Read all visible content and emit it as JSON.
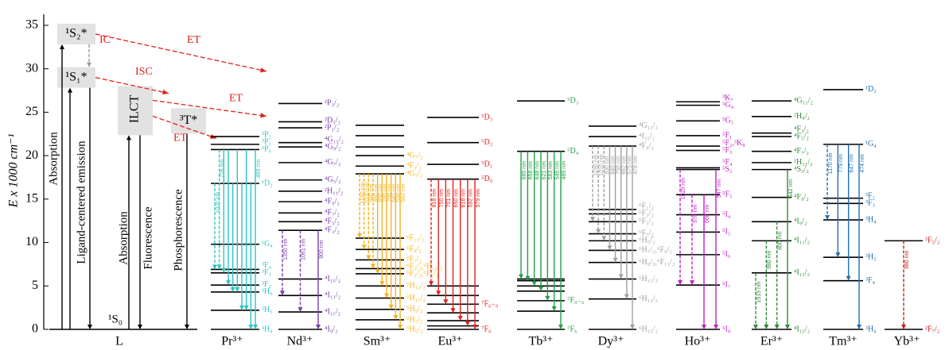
{
  "axis": {
    "label": "E x 1000 cm⁻¹",
    "lim": [
      0,
      36
    ],
    "ticks": [
      0,
      5,
      10,
      15,
      20,
      25,
      30,
      35
    ]
  },
  "ligand": {
    "name": "L",
    "s2": {
      "label": "¹S₂*",
      "E": 34
    },
    "s1": {
      "label": "¹S₁*",
      "E": 29
    },
    "s0": {
      "label": "¹S₀",
      "E": 0
    },
    "ilct": {
      "label": "ILCT",
      "E": 25
    },
    "triplet": {
      "label": "³T*",
      "E": 24
    },
    "absorption": "Absorption",
    "emission": "Ligand-centered emission",
    "ilct_absorption": "Absorption",
    "fluorescence": "Fluorescence",
    "phosphorescence": "Phosphorescence",
    "ic": "IC",
    "isc": "ISC",
    "et": [
      "ET",
      "ET",
      "ET"
    ]
  },
  "ions": [
    {
      "name": "Pr³⁺",
      "color": "#2fc4c0",
      "levels": [
        [
          0,
          "³H₄"
        ],
        [
          2.2,
          "³H₅"
        ],
        [
          4.3,
          "³H₆"
        ],
        [
          5.1,
          "³F₂"
        ],
        [
          6.5,
          "³F₃"
        ],
        [
          6.9,
          "³F₄"
        ],
        [
          9.8,
          "¹G₄"
        ],
        [
          16.8,
          "¹D₂"
        ],
        [
          20.7,
          "³P₀"
        ],
        [
          21.3,
          "³P₁"
        ],
        [
          22.2,
          "³P₂"
        ]
      ],
      "transitions": [
        [
          7,
          5,
          "1020 nm",
          true
        ],
        [
          8,
          5,
          "726 nm",
          true
        ],
        [
          8,
          4,
          null,
          false
        ],
        [
          8,
          3,
          null,
          false
        ],
        [
          7,
          2,
          null,
          false
        ],
        [
          8,
          2,
          null,
          false
        ],
        [
          7,
          1,
          null,
          false
        ],
        [
          8,
          1,
          null,
          false
        ],
        [
          7,
          0,
          null,
          false
        ],
        [
          8,
          0,
          "489 nm",
          false
        ]
      ]
    },
    {
      "name": "Nd³⁺",
      "color": "#7b3fa8",
      "levels": [
        [
          0,
          "⁴I₉/₂"
        ],
        [
          2.0,
          "⁴I₁₁/₂"
        ],
        [
          3.9,
          "⁴I₁₃/₂"
        ],
        [
          5.8,
          "⁴I₁₅/₂"
        ],
        [
          11.4,
          "⁴F₃/₂"
        ],
        [
          12.4,
          "⁴F₅/₂"
        ],
        [
          13.4,
          "⁴F₇/₂"
        ],
        [
          14.7,
          "⁴F₉/₂"
        ],
        [
          15.9,
          "²H₁₁/₂"
        ],
        [
          17.2,
          "⁴G₅/₂"
        ],
        [
          19.2,
          "⁴G₇/₂"
        ],
        [
          21.0,
          "⁴G₉/₂"
        ],
        [
          21.5,
          "⁴G₁₁/₂"
        ],
        [
          23.2,
          "²P₁/₂"
        ],
        [
          23.9,
          "²D₅/₂"
        ],
        [
          26.0,
          "²P₃/₂"
        ]
      ],
      "transitions": [
        [
          4,
          2,
          "1350 nm",
          true
        ],
        [
          4,
          1,
          "1061 nm",
          true
        ],
        [
          4,
          0,
          "900 nm",
          false
        ]
      ]
    },
    {
      "name": "Sm³⁺",
      "color": "#f0b422",
      "levels": [
        [
          0,
          "⁶H₅/₂"
        ],
        [
          1.1,
          "⁶H₇/₂"
        ],
        [
          2.3,
          "⁶H₉/₂"
        ],
        [
          3.6,
          "⁶H₁₁/₂"
        ],
        [
          5.0,
          "⁶H₁₃/₂"
        ],
        [
          6.4,
          "⁶F₃/₂,⁶F₁/₂"
        ],
        [
          7.0,
          "⁶F₅/₂,⁶H₁₅/₂"
        ],
        [
          8.0,
          "⁶F₇/₂"
        ],
        [
          9.2,
          "⁶F₉/₂"
        ],
        [
          10.5,
          "⁶F₁₁/₂"
        ],
        [
          17.9,
          "⁴G₅/₂"
        ],
        [
          18.8,
          "⁴F₃/₂"
        ],
        [
          20.0,
          "⁴G₇/₂"
        ],
        [
          21.0,
          null
        ],
        [
          22.3,
          null
        ],
        [
          23.5,
          null
        ]
      ],
      "transitions": [
        [
          10,
          9,
          "1190 nm",
          true
        ],
        [
          10,
          8,
          "1030 nm",
          true
        ],
        [
          10,
          7,
          "940 nm",
          true
        ],
        [
          10,
          6,
          "880 nm",
          true
        ],
        [
          10,
          5,
          "850 nm",
          false
        ],
        [
          10,
          4,
          "785 nm",
          false
        ],
        [
          10,
          3,
          "705 nm",
          false
        ],
        [
          10,
          2,
          "645 nm",
          false
        ],
        [
          10,
          1,
          "598 nm",
          false
        ],
        [
          10,
          0,
          "562 nm",
          false
        ]
      ]
    },
    {
      "name": "Eu³⁺",
      "color": "#e3201c",
      "levels": [
        [
          0,
          "⁷F₀"
        ],
        [
          0.4,
          null
        ],
        [
          1.0,
          null
        ],
        [
          1.9,
          null
        ],
        [
          2.9,
          "⁷F₆₋₀"
        ],
        [
          3.9,
          null
        ],
        [
          5.0,
          null
        ],
        [
          17.3,
          "⁵D₀"
        ],
        [
          19.0,
          "⁵D₁"
        ],
        [
          21.5,
          "⁵D₂"
        ],
        [
          24.4,
          "⁵D₃"
        ]
      ],
      "transitions": [
        [
          7,
          6,
          "818 nm",
          true
        ],
        [
          7,
          5,
          "750 nm",
          false
        ],
        [
          7,
          4,
          "701 nm",
          false
        ],
        [
          7,
          3,
          "650 nm",
          false
        ],
        [
          7,
          2,
          "618 nm",
          false
        ],
        [
          7,
          1,
          "592 nm",
          false
        ],
        [
          7,
          0,
          "579 nm",
          false
        ]
      ]
    },
    {
      "name": "Tb³⁺",
      "color": "#22a04a",
      "levels": [
        [
          0,
          "⁷F₆"
        ],
        [
          2.1,
          null
        ],
        [
          3.3,
          "⁷F₀₋₆"
        ],
        [
          4.4,
          null
        ],
        [
          5.0,
          null
        ],
        [
          5.6,
          null
        ],
        [
          5.8,
          null
        ],
        [
          20.5,
          "⁵D₄"
        ],
        [
          26.3,
          "⁵D₃"
        ]
      ],
      "transitions": [
        [
          7,
          6,
          "680 nm",
          false
        ],
        [
          7,
          5,
          "668 nm",
          false
        ],
        [
          7,
          4,
          "648 nm",
          false
        ],
        [
          7,
          3,
          "621 nm",
          false
        ],
        [
          7,
          2,
          "583 nm",
          false
        ],
        [
          7,
          1,
          "545 nm",
          false
        ],
        [
          7,
          0,
          "489 nm",
          false
        ]
      ]
    },
    {
      "name": "Dy³⁺",
      "color": "#a0a0a0",
      "levels": [
        [
          0,
          "⁶H₁₅/₂"
        ],
        [
          3.5,
          "⁶H₁₃/₂"
        ],
        [
          5.8,
          "⁶H₁₁/₂"
        ],
        [
          7.7,
          "⁶H₉/₂,⁶F₁₁/₂"
        ],
        [
          9.1,
          "⁶H₇/₂,⁶F₉/₂"
        ],
        [
          10.2,
          "⁶H₅/₂"
        ],
        [
          11.0,
          "⁶F₇/₂"
        ],
        [
          12.4,
          "⁶F₅/₂"
        ],
        [
          13.3,
          "⁶F₃/₂"
        ],
        [
          13.8,
          "⁶F₁/₂"
        ],
        [
          21.1,
          "⁴F₉/₂"
        ],
        [
          22.2,
          "⁴I₁₅/₂"
        ],
        [
          23.4,
          "⁴G₁₁/₂"
        ]
      ],
      "transitions": [
        [
          10,
          7,
          "1150 nm",
          true
        ],
        [
          10,
          6,
          "1010 nm",
          true
        ],
        [
          10,
          5,
          "930 nm",
          true
        ],
        [
          10,
          4,
          "840 nm",
          false
        ],
        [
          10,
          3,
          "750 nm",
          false
        ],
        [
          10,
          2,
          "662 nm",
          false
        ],
        [
          10,
          1,
          "575 nm",
          false
        ],
        [
          10,
          0,
          "478 nm",
          false
        ]
      ]
    },
    {
      "name": "Ho³⁺",
      "color": "#c21fc4",
      "levels": [
        [
          0,
          "⁵I₈"
        ],
        [
          5.1,
          "⁵I₇"
        ],
        [
          8.6,
          "⁵I₆"
        ],
        [
          11.2,
          "⁵I₅"
        ],
        [
          13.2,
          "⁵I₄"
        ],
        [
          15.5,
          "⁵F₅"
        ],
        [
          18.4,
          "⁵S₂"
        ],
        [
          18.6,
          "⁵F₄"
        ],
        [
          20.6,
          "⁵F₃"
        ],
        [
          21.1,
          "⁵F₂,³K₈"
        ],
        [
          22.3,
          "⁵F₁"
        ],
        [
          24.0,
          "⁵G₅"
        ],
        [
          25.8,
          "⁵G₄"
        ],
        [
          26.2,
          "³K₇"
        ]
      ],
      "transitions": [
        [
          6,
          1,
          "1020 nm",
          true
        ],
        [
          5,
          1,
          "970 nm",
          true
        ],
        [
          5,
          0,
          "660 nm",
          false
        ],
        [
          6,
          0,
          "547 nm",
          false
        ]
      ]
    },
    {
      "name": "Er³⁺",
      "color": "#2f8a3a",
      "levels": [
        [
          0,
          "⁴I₁₅/₂"
        ],
        [
          6.5,
          "⁴I₁₃/₂"
        ],
        [
          10.2,
          "⁴I₁₁/₂"
        ],
        [
          12.4,
          "⁴I₉/₂"
        ],
        [
          15.2,
          "⁴F₉/₂"
        ],
        [
          18.4,
          "⁴S₃/₂"
        ],
        [
          19.2,
          "²H₁₁/₂"
        ],
        [
          20.5,
          "⁴F₇/₂"
        ],
        [
          22.2,
          "⁴F₅/₂"
        ],
        [
          22.6,
          "⁴F₃/₂"
        ],
        [
          24.5,
          "²H₉/₂"
        ],
        [
          26.3,
          "⁴G₁₁/₂"
        ]
      ],
      "transitions": [
        [
          1,
          0,
          "1515 nm",
          true
        ],
        [
          2,
          0,
          "980 nm",
          true
        ],
        [
          3,
          0,
          "800 nm",
          true
        ],
        [
          5,
          0,
          "542 nm",
          false
        ]
      ]
    },
    {
      "name": "Tm³⁺",
      "color": "#1f6fb4",
      "levels": [
        [
          0,
          "³H₆"
        ],
        [
          5.6,
          "³F₄"
        ],
        [
          8.3,
          "³H₅"
        ],
        [
          12.6,
          "³H₄"
        ],
        [
          14.5,
          "³F₃"
        ],
        [
          15.1,
          "³F₂"
        ],
        [
          21.3,
          "¹G₄"
        ],
        [
          27.6,
          "¹D₂"
        ]
      ],
      "transitions": [
        [
          6,
          3,
          "1170 nm",
          true
        ],
        [
          6,
          2,
          "779 nm",
          false
        ],
        [
          6,
          1,
          "647 nm",
          false
        ],
        [
          6,
          0,
          "474 nm",
          false
        ]
      ]
    },
    {
      "name": "Yb³⁺",
      "color": "#c0201e",
      "levels": [
        [
          0,
          "²F₇/₂"
        ],
        [
          10.2,
          "²F₅/₂"
        ]
      ],
      "transitions": [
        [
          1,
          0,
          "980 nm",
          true
        ]
      ]
    }
  ]
}
